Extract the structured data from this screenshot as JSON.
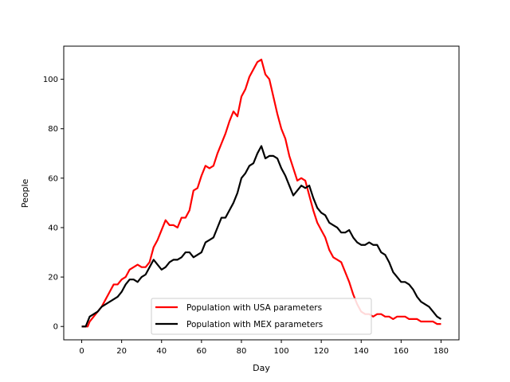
{
  "chart_data": {
    "type": "line",
    "title": "",
    "xlabel": "Day",
    "ylabel": "People",
    "xlim": [
      -9,
      189
    ],
    "ylim": [
      -5.4,
      113.4
    ],
    "xticks": [
      0,
      20,
      40,
      60,
      80,
      100,
      120,
      140,
      160,
      180
    ],
    "yticks": [
      0,
      20,
      40,
      60,
      80,
      100
    ],
    "grid": false,
    "legend_position": "lower-center",
    "series": [
      {
        "name": "Population with USA parameters",
        "color": "#ff0000",
        "points": [
          [
            0,
            0
          ],
          [
            3,
            0
          ],
          [
            4,
            2
          ],
          [
            6,
            4
          ],
          [
            8,
            6
          ],
          [
            10,
            8
          ],
          [
            12,
            11
          ],
          [
            14,
            14
          ],
          [
            16,
            17
          ],
          [
            18,
            17
          ],
          [
            20,
            19
          ],
          [
            22,
            20
          ],
          [
            24,
            23
          ],
          [
            26,
            24
          ],
          [
            28,
            25
          ],
          [
            30,
            24
          ],
          [
            32,
            24
          ],
          [
            34,
            26
          ],
          [
            36,
            32
          ],
          [
            38,
            35
          ],
          [
            40,
            39
          ],
          [
            42,
            43
          ],
          [
            44,
            41
          ],
          [
            46,
            41
          ],
          [
            48,
            40
          ],
          [
            50,
            44
          ],
          [
            52,
            44
          ],
          [
            54,
            47
          ],
          [
            56,
            55
          ],
          [
            58,
            56
          ],
          [
            60,
            61
          ],
          [
            62,
            65
          ],
          [
            64,
            64
          ],
          [
            66,
            65
          ],
          [
            68,
            70
          ],
          [
            70,
            74
          ],
          [
            72,
            78
          ],
          [
            74,
            83
          ],
          [
            76,
            87
          ],
          [
            78,
            85
          ],
          [
            80,
            93
          ],
          [
            82,
            96
          ],
          [
            84,
            101
          ],
          [
            86,
            104
          ],
          [
            88,
            107
          ],
          [
            90,
            108
          ],
          [
            92,
            102
          ],
          [
            94,
            100
          ],
          [
            96,
            93
          ],
          [
            98,
            86
          ],
          [
            100,
            80
          ],
          [
            102,
            76
          ],
          [
            104,
            69
          ],
          [
            106,
            64
          ],
          [
            108,
            59
          ],
          [
            110,
            60
          ],
          [
            112,
            59
          ],
          [
            114,
            53
          ],
          [
            116,
            47
          ],
          [
            118,
            42
          ],
          [
            120,
            39
          ],
          [
            122,
            36
          ],
          [
            124,
            31
          ],
          [
            126,
            28
          ],
          [
            128,
            27
          ],
          [
            130,
            26
          ],
          [
            132,
            22
          ],
          [
            134,
            18
          ],
          [
            136,
            13
          ],
          [
            138,
            9
          ],
          [
            140,
            6
          ],
          [
            142,
            5
          ],
          [
            144,
            5
          ],
          [
            146,
            4
          ],
          [
            148,
            5
          ],
          [
            150,
            5
          ],
          [
            152,
            4
          ],
          [
            154,
            4
          ],
          [
            156,
            3
          ],
          [
            158,
            4
          ],
          [
            160,
            4
          ],
          [
            162,
            4
          ],
          [
            164,
            3
          ],
          [
            166,
            3
          ],
          [
            168,
            3
          ],
          [
            170,
            2
          ],
          [
            172,
            2
          ],
          [
            174,
            2
          ],
          [
            176,
            2
          ],
          [
            178,
            1
          ],
          [
            180,
            1
          ]
        ]
      },
      {
        "name": "Population with MEX parameters",
        "color": "#000000",
        "points": [
          [
            0,
            0
          ],
          [
            2,
            0
          ],
          [
            4,
            4
          ],
          [
            6,
            5
          ],
          [
            8,
            6
          ],
          [
            10,
            8
          ],
          [
            12,
            9
          ],
          [
            14,
            10
          ],
          [
            16,
            11
          ],
          [
            18,
            12
          ],
          [
            20,
            14
          ],
          [
            22,
            17
          ],
          [
            24,
            19
          ],
          [
            26,
            19
          ],
          [
            28,
            18
          ],
          [
            30,
            20
          ],
          [
            32,
            21
          ],
          [
            34,
            24
          ],
          [
            36,
            27
          ],
          [
            38,
            25
          ],
          [
            40,
            23
          ],
          [
            42,
            24
          ],
          [
            44,
            26
          ],
          [
            46,
            27
          ],
          [
            48,
            27
          ],
          [
            50,
            28
          ],
          [
            52,
            30
          ],
          [
            54,
            30
          ],
          [
            56,
            28
          ],
          [
            58,
            29
          ],
          [
            60,
            30
          ],
          [
            62,
            34
          ],
          [
            64,
            35
          ],
          [
            66,
            36
          ],
          [
            68,
            40
          ],
          [
            70,
            44
          ],
          [
            72,
            44
          ],
          [
            74,
            47
          ],
          [
            76,
            50
          ],
          [
            78,
            54
          ],
          [
            80,
            60
          ],
          [
            82,
            62
          ],
          [
            84,
            65
          ],
          [
            86,
            66
          ],
          [
            88,
            70
          ],
          [
            90,
            73
          ],
          [
            92,
            68
          ],
          [
            94,
            69
          ],
          [
            96,
            69
          ],
          [
            98,
            68
          ],
          [
            100,
            64
          ],
          [
            102,
            61
          ],
          [
            104,
            57
          ],
          [
            106,
            53
          ],
          [
            108,
            55
          ],
          [
            110,
            57
          ],
          [
            112,
            56
          ],
          [
            114,
            57
          ],
          [
            116,
            52
          ],
          [
            118,
            48
          ],
          [
            120,
            46
          ],
          [
            122,
            45
          ],
          [
            124,
            42
          ],
          [
            126,
            41
          ],
          [
            128,
            40
          ],
          [
            130,
            38
          ],
          [
            132,
            38
          ],
          [
            134,
            39
          ],
          [
            136,
            36
          ],
          [
            138,
            34
          ],
          [
            140,
            33
          ],
          [
            142,
            33
          ],
          [
            144,
            34
          ],
          [
            146,
            33
          ],
          [
            148,
            33
          ],
          [
            150,
            30
          ],
          [
            152,
            29
          ],
          [
            154,
            26
          ],
          [
            156,
            22
          ],
          [
            158,
            20
          ],
          [
            160,
            18
          ],
          [
            162,
            18
          ],
          [
            164,
            17
          ],
          [
            166,
            15
          ],
          [
            168,
            12
          ],
          [
            170,
            10
          ],
          [
            172,
            9
          ],
          [
            174,
            8
          ],
          [
            176,
            6
          ],
          [
            178,
            4
          ],
          [
            180,
            3
          ]
        ]
      }
    ]
  }
}
